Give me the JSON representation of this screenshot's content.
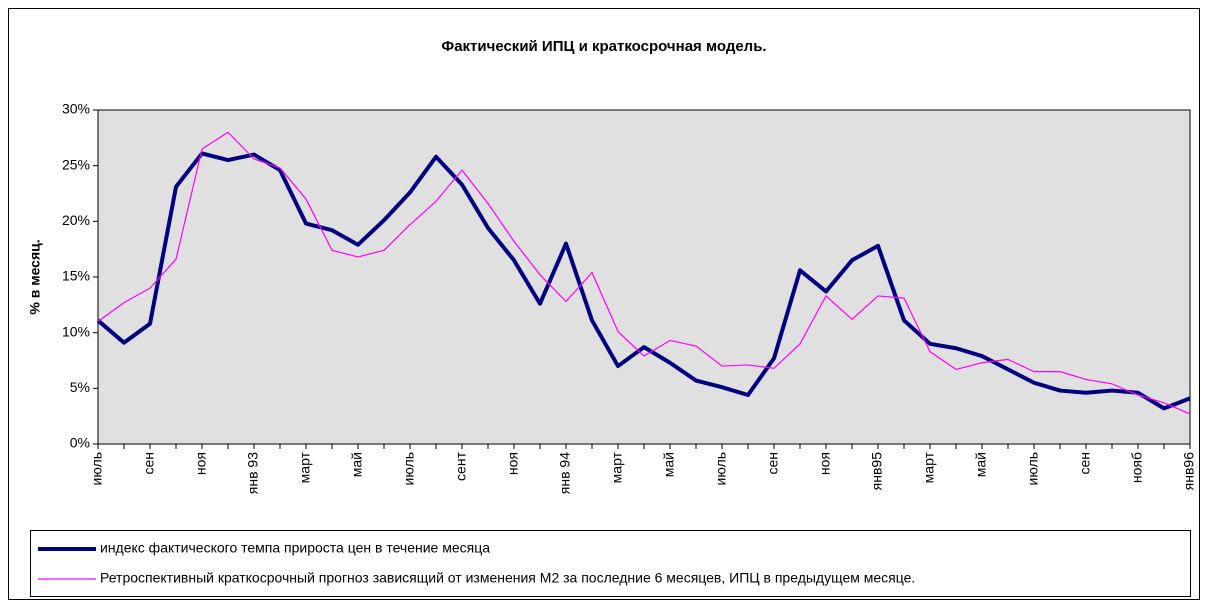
{
  "chart_data": {
    "type": "line",
    "title": "Фактический ИПЦ и краткосрочная модель.",
    "y_label": "% в месяц.",
    "categories": [
      "июль",
      null,
      "сен",
      null,
      "ноя",
      null,
      "янв 93",
      null,
      "март",
      null,
      "май",
      null,
      "июль",
      null,
      "сент",
      null,
      "ноя",
      null,
      "янв 94",
      null,
      "март",
      null,
      "май",
      null,
      "июль",
      null,
      "сен",
      null,
      "ноя",
      null,
      "янв95",
      null,
      "март",
      null,
      "май",
      null,
      "июль",
      null,
      "сен",
      null,
      "нояб",
      null,
      "янв96"
    ],
    "series": [
      {
        "name": "индекс фактического темпа прироста цен в течение месяца",
        "color": "#000080",
        "values": [
          11.1,
          9.1,
          10.8,
          23.1,
          26.1,
          25.5,
          26.0,
          24.6,
          19.8,
          19.2,
          17.9,
          20.1,
          22.6,
          25.8,
          23.3,
          19.4,
          16.5,
          12.6,
          18.0,
          11.1,
          7.0,
          8.7,
          7.3,
          5.7,
          5.1,
          4.4,
          7.7,
          15.6,
          13.7,
          16.5,
          17.8,
          11.1,
          9.0,
          8.6,
          7.9,
          6.7,
          5.5,
          4.8,
          4.6,
          4.8,
          4.6,
          3.2,
          4.1
        ]
      },
      {
        "name": "Ретроспективный краткосрочный прогноз зависящий от изменения М2 за последние 6 месяцев, ИПЦ в предыдущем месяце.",
        "color": "#ff00ff",
        "values": [
          11.0,
          12.7,
          14.0,
          16.6,
          26.5,
          28.0,
          25.6,
          24.8,
          22.0,
          17.4,
          16.8,
          17.4,
          19.7,
          21.8,
          24.6,
          21.6,
          18.2,
          15.2,
          12.8,
          15.4,
          10.1,
          7.9,
          9.3,
          8.8,
          7.0,
          7.1,
          6.8,
          9.0,
          13.3,
          11.2,
          13.3,
          13.1,
          8.3,
          6.7,
          7.3,
          7.6,
          6.5,
          6.5,
          5.8,
          5.4,
          4.4,
          3.7,
          2.7
        ]
      }
    ],
    "ylim": [
      0,
      30
    ],
    "yticks": [
      {
        "value": 0,
        "label": "0%"
      },
      {
        "value": 5,
        "label": "5%"
      },
      {
        "value": 10,
        "label": "10%"
      },
      {
        "value": 15,
        "label": "15%"
      },
      {
        "value": 20,
        "label": "20%"
      },
      {
        "value": 25,
        "label": "25%"
      },
      {
        "value": 30,
        "label": "30%"
      }
    ],
    "legend": "bottom"
  }
}
